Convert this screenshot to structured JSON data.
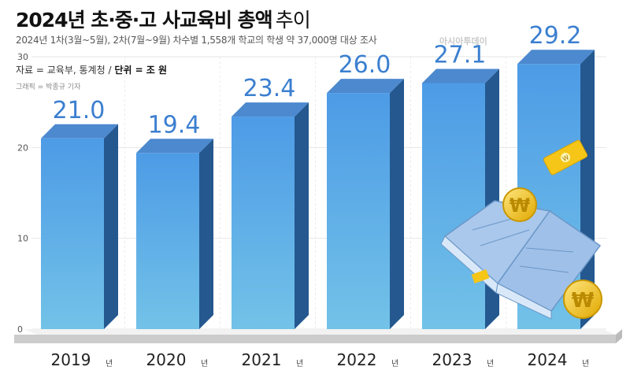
{
  "header": {
    "title_bold": "2024년 초·중·고 사교육비 총액",
    "title_light": "추이",
    "subtitle": "2024년 1차(3월~5월), 2차(7월~9월) 차수별 1,558개 학교의 학생 약 37,000명 대상 조사",
    "watermark": "아시아투데이",
    "source_prefix": "자료 = 교육부, 통계청 / ",
    "source_unit": "단위 = 조 원",
    "credit": "그래픽 = 박종규 기자"
  },
  "colors": {
    "bar_front_top": "#4d9be6",
    "bar_front_bottom": "#72c2e8",
    "bar_side": "#24588f",
    "bar_top": "#4c89cf",
    "value_label": "#3b7fd0"
  },
  "chart_data": {
    "type": "bar",
    "categories": [
      "2019",
      "2020",
      "2021",
      "2022",
      "2023",
      "2024"
    ],
    "category_suffix": "년",
    "values": [
      21.0,
      19.4,
      23.4,
      26.0,
      27.1,
      29.2
    ],
    "value_labels": [
      "21.0",
      "19.4",
      "23.4",
      "26.0",
      "27.1",
      "29.2"
    ],
    "yticks": [
      0,
      10,
      20,
      30
    ],
    "ylim": [
      0,
      30
    ],
    "grid": true,
    "style": "3d-bars",
    "decoration": [
      "open-book-icon",
      "won-coin-icon",
      "won-bill-icon"
    ]
  }
}
